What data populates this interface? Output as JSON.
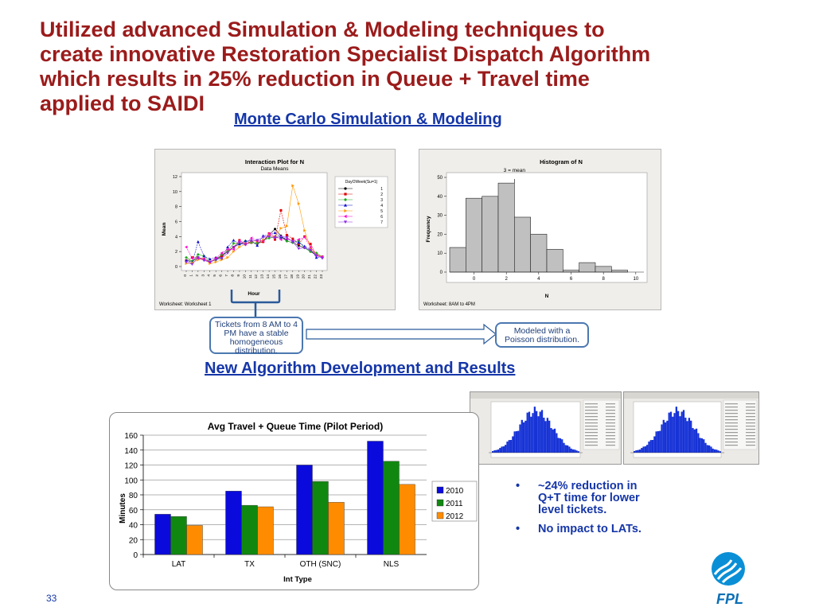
{
  "title_lines": [
    "Utilized advanced Simulation & Modeling techniques to",
    "create innovative Restoration Specialist Dispatch Algorithm",
    "which results in 25% reduction in Queue + Travel time",
    "applied to SAIDI"
  ],
  "section1_title": "Monte Carlo Simulation & Modeling",
  "section2_title": "New Algorithm Development  and Results",
  "interaction_plot": {
    "title": "Interaction Plot for N",
    "subtitle": "Data Means",
    "ylabel": "Mean",
    "xlabel": "Hour",
    "footer": "Worksheet: Worksheet 1",
    "legend_title": "DayOWeek(Su=1)",
    "legend_items": [
      "1",
      "2",
      "3",
      "4",
      "5",
      "6",
      "7"
    ],
    "y_ticks": [
      "0",
      "2",
      "4",
      "6",
      "8",
      "10",
      "12"
    ],
    "x_ticks": [
      "0",
      "1",
      "2",
      "3",
      "4",
      "5",
      "6",
      "7",
      "8",
      "9",
      "10",
      "11",
      "12",
      "13",
      "14",
      "15",
      "16",
      "17",
      "18",
      "19",
      "20",
      "21",
      "22",
      "23"
    ],
    "series_colors": [
      "#000000",
      "#e00000",
      "#1fa81f",
      "#1010d0",
      "#ff9900",
      "#ff00cc",
      "#8a2be2"
    ]
  },
  "histogram": {
    "title": "Histogram of N",
    "annotation": "3 = mean",
    "ylabel": "Frequency",
    "xlabel": "N",
    "footer": "Worksheet: 8AM to 4PM",
    "y_ticks": [
      "0",
      "10",
      "20",
      "30",
      "40",
      "50"
    ],
    "x_ticks": [
      "0",
      "2",
      "4",
      "6",
      "8",
      "10"
    ]
  },
  "callout_left": "Tickets from 8 AM to 4 PM have a stable homogeneous distribution.",
  "callout_right": "Modeled with a Poisson distribution.",
  "chart_data": [
    {
      "type": "bar",
      "title": "Histogram of N",
      "xlabel": "N",
      "ylabel": "Frequency",
      "ylim": [
        0,
        50
      ],
      "xlim": [
        -1,
        11
      ],
      "bin_width": 1,
      "bin_starts": [
        -1,
        0,
        1,
        2,
        3,
        4,
        5,
        6,
        7,
        8,
        9,
        10
      ],
      "values": [
        13,
        39,
        40,
        47,
        29,
        20,
        12,
        1,
        5,
        3,
        1,
        0
      ]
    },
    {
      "type": "bar",
      "title": "Avg Travel + Queue Time (Pilot Period)",
      "xlabel": "Int Type",
      "ylabel": "Minutes",
      "ylim": [
        0,
        160
      ],
      "y_ticks": [
        "0",
        "20",
        "40",
        "60",
        "80",
        "100",
        "120",
        "140",
        "160"
      ],
      "categories": [
        "LAT",
        "TX",
        "OTH (SNC)",
        "NLS"
      ],
      "legend_position": "right",
      "series": [
        {
          "name": "2010",
          "color": "#0a0adc",
          "values": [
            54,
            85,
            120,
            152
          ]
        },
        {
          "name": "2011",
          "color": "#108810",
          "values": [
            51,
            66,
            98,
            125
          ]
        },
        {
          "name": "2012",
          "color": "#ff8c00",
          "values": [
            39,
            64,
            70,
            94
          ]
        }
      ]
    }
  ],
  "bullets": [
    "~24% reduction in Q+T time for lower level tickets.",
    "No impact to LATs."
  ],
  "page_number": "33",
  "logo_text": "FPL"
}
